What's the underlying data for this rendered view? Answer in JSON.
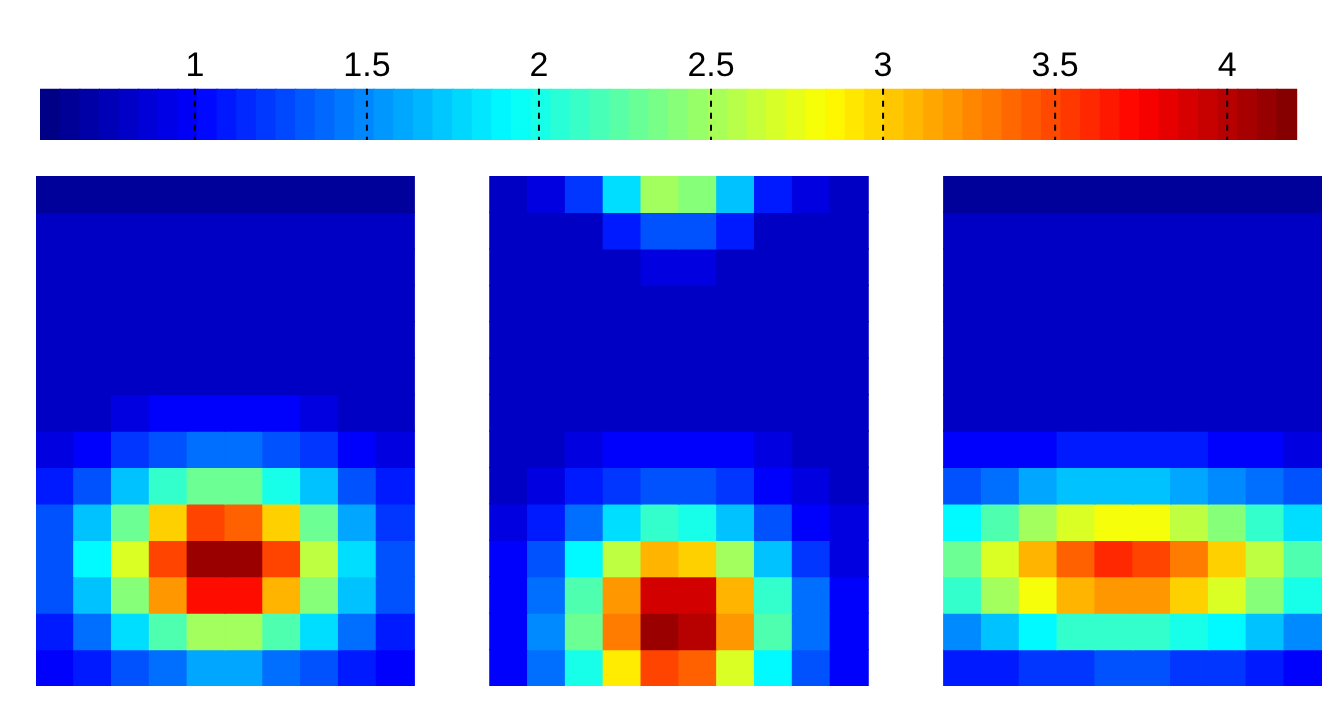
{
  "chart_data": {
    "type": "heatmap",
    "clim": [
      0.55,
      4.2
    ],
    "cticks": [
      1,
      1.5,
      2,
      2.5,
      3,
      3.5,
      4
    ],
    "categories": [
      null,
      null,
      null,
      null,
      null,
      null,
      null,
      null,
      null,
      null,
      null,
      null,
      null,
      null,
      null,
      null,
      null,
      null,
      null,
      null,
      null,
      null,
      null,
      null,
      null,
      null,
      null,
      null,
      null,
      null,
      null,
      null,
      null,
      null
    ],
    "y_categories": [
      null,
      null,
      null,
      null,
      null,
      null,
      null,
      null,
      null,
      null,
      null,
      null,
      null,
      null
    ],
    "cells": [
      [
        0.65,
        0.65,
        0.65,
        0.65,
        0.65,
        0.65,
        0.65,
        0.65,
        0.65,
        0.65,
        null,
        null,
        0.8,
        0.9,
        1.2,
        1.8,
        2.5,
        2.4,
        1.7,
        1.1,
        0.9,
        0.8,
        null,
        null,
        0.65,
        0.65,
        0.65,
        0.65,
        0.65,
        0.65,
        0.65,
        0.65,
        0.65,
        0.65
      ],
      [
        0.8,
        0.8,
        0.8,
        0.8,
        0.8,
        0.8,
        0.8,
        0.8,
        0.8,
        0.8,
        null,
        null,
        0.8,
        0.8,
        0.8,
        1.1,
        1.3,
        1.3,
        1.1,
        0.8,
        0.8,
        0.8,
        null,
        null,
        0.8,
        0.8,
        0.8,
        0.8,
        0.8,
        0.8,
        0.8,
        0.8,
        0.8,
        0.8
      ],
      [
        0.8,
        0.8,
        0.8,
        0.8,
        0.8,
        0.8,
        0.8,
        0.8,
        0.8,
        0.8,
        null,
        null,
        0.8,
        0.8,
        0.8,
        0.8,
        0.9,
        0.9,
        0.8,
        0.8,
        0.8,
        0.8,
        null,
        null,
        0.8,
        0.8,
        0.8,
        0.8,
        0.8,
        0.8,
        0.8,
        0.8,
        0.8,
        0.8
      ],
      [
        0.8,
        0.8,
        0.8,
        0.8,
        0.8,
        0.8,
        0.8,
        0.8,
        0.8,
        0.8,
        null,
        null,
        0.8,
        0.8,
        0.8,
        0.8,
        0.8,
        0.8,
        0.8,
        0.8,
        0.8,
        0.8,
        null,
        null,
        0.8,
        0.8,
        0.8,
        0.8,
        0.8,
        0.8,
        0.8,
        0.8,
        0.8,
        0.8
      ],
      [
        0.8,
        0.8,
        0.8,
        0.8,
        0.8,
        0.8,
        0.8,
        0.8,
        0.8,
        0.8,
        null,
        null,
        0.8,
        0.8,
        0.8,
        0.8,
        0.8,
        0.8,
        0.8,
        0.8,
        0.8,
        0.8,
        null,
        null,
        0.8,
        0.8,
        0.8,
        0.8,
        0.8,
        0.8,
        0.8,
        0.8,
        0.8,
        0.8
      ],
      [
        0.8,
        0.8,
        0.8,
        0.8,
        0.8,
        0.8,
        0.8,
        0.8,
        0.8,
        0.8,
        null,
        null,
        0.8,
        0.8,
        0.8,
        0.8,
        0.8,
        0.8,
        0.8,
        0.8,
        0.8,
        0.8,
        null,
        null,
        0.8,
        0.8,
        0.8,
        0.8,
        0.8,
        0.8,
        0.8,
        0.8,
        0.8,
        0.8
      ],
      [
        0.8,
        0.8,
        0.9,
        1.0,
        1.0,
        1.0,
        1.0,
        0.9,
        0.8,
        0.8,
        null,
        null,
        0.8,
        0.8,
        0.8,
        0.8,
        0.8,
        0.8,
        0.8,
        0.8,
        0.8,
        0.8,
        null,
        null,
        0.8,
        0.8,
        0.8,
        0.8,
        0.8,
        0.8,
        0.8,
        0.8,
        0.8,
        0.8
      ],
      [
        0.9,
        1.0,
        1.2,
        1.3,
        1.4,
        1.4,
        1.3,
        1.2,
        1.0,
        0.9,
        null,
        null,
        0.8,
        0.8,
        0.9,
        1.0,
        1.0,
        1.0,
        1.0,
        0.9,
        0.8,
        0.8,
        null,
        null,
        1.0,
        1.0,
        1.0,
        1.1,
        1.1,
        1.1,
        1.1,
        1.0,
        1.0,
        0.9
      ],
      [
        1.1,
        1.3,
        1.7,
        2.1,
        2.3,
        2.3,
        2.0,
        1.7,
        1.3,
        1.1,
        null,
        null,
        0.8,
        0.9,
        1.1,
        1.2,
        1.3,
        1.3,
        1.2,
        1.0,
        0.9,
        0.8,
        null,
        null,
        1.3,
        1.4,
        1.6,
        1.7,
        1.7,
        1.7,
        1.6,
        1.5,
        1.4,
        1.3
      ],
      [
        1.3,
        1.7,
        2.3,
        3.0,
        3.5,
        3.4,
        3.0,
        2.3,
        1.6,
        1.2,
        null,
        null,
        0.9,
        1.1,
        1.4,
        1.8,
        2.1,
        2.0,
        1.7,
        1.3,
        1.0,
        0.9,
        null,
        null,
        1.9,
        2.2,
        2.5,
        2.7,
        2.8,
        2.8,
        2.6,
        2.4,
        2.1,
        1.8
      ],
      [
        1.3,
        1.9,
        2.7,
        3.5,
        4.1,
        4.1,
        3.5,
        2.6,
        1.8,
        1.3,
        null,
        null,
        1.0,
        1.3,
        1.9,
        2.6,
        3.1,
        3.0,
        2.5,
        1.7,
        1.2,
        0.9,
        null,
        null,
        2.3,
        2.7,
        3.1,
        3.4,
        3.6,
        3.5,
        3.3,
        3.0,
        2.6,
        2.2
      ],
      [
        1.3,
        1.7,
        2.4,
        3.2,
        3.7,
        3.7,
        3.1,
        2.4,
        1.7,
        1.3,
        null,
        null,
        1.0,
        1.4,
        2.2,
        3.2,
        3.9,
        3.9,
        3.1,
        2.1,
        1.4,
        1.0,
        null,
        null,
        2.1,
        2.5,
        2.8,
        3.1,
        3.2,
        3.2,
        3.0,
        2.7,
        2.4,
        2.0
      ],
      [
        1.1,
        1.4,
        1.8,
        2.2,
        2.5,
        2.5,
        2.2,
        1.8,
        1.4,
        1.1,
        null,
        null,
        1.0,
        1.5,
        2.3,
        3.3,
        4.1,
        4.0,
        3.2,
        2.2,
        1.4,
        1.0,
        null,
        null,
        1.5,
        1.7,
        1.9,
        2.1,
        2.1,
        2.1,
        2.0,
        1.9,
        1.7,
        1.5
      ],
      [
        1.0,
        1.1,
        1.3,
        1.4,
        1.6,
        1.6,
        1.4,
        1.3,
        1.1,
        1.0,
        null,
        null,
        1.0,
        1.4,
        2.0,
        2.9,
        3.5,
        3.4,
        2.7,
        1.9,
        1.3,
        1.0,
        null,
        null,
        1.1,
        1.1,
        1.2,
        1.2,
        1.3,
        1.3,
        1.2,
        1.2,
        1.1,
        1.0
      ]
    ]
  }
}
